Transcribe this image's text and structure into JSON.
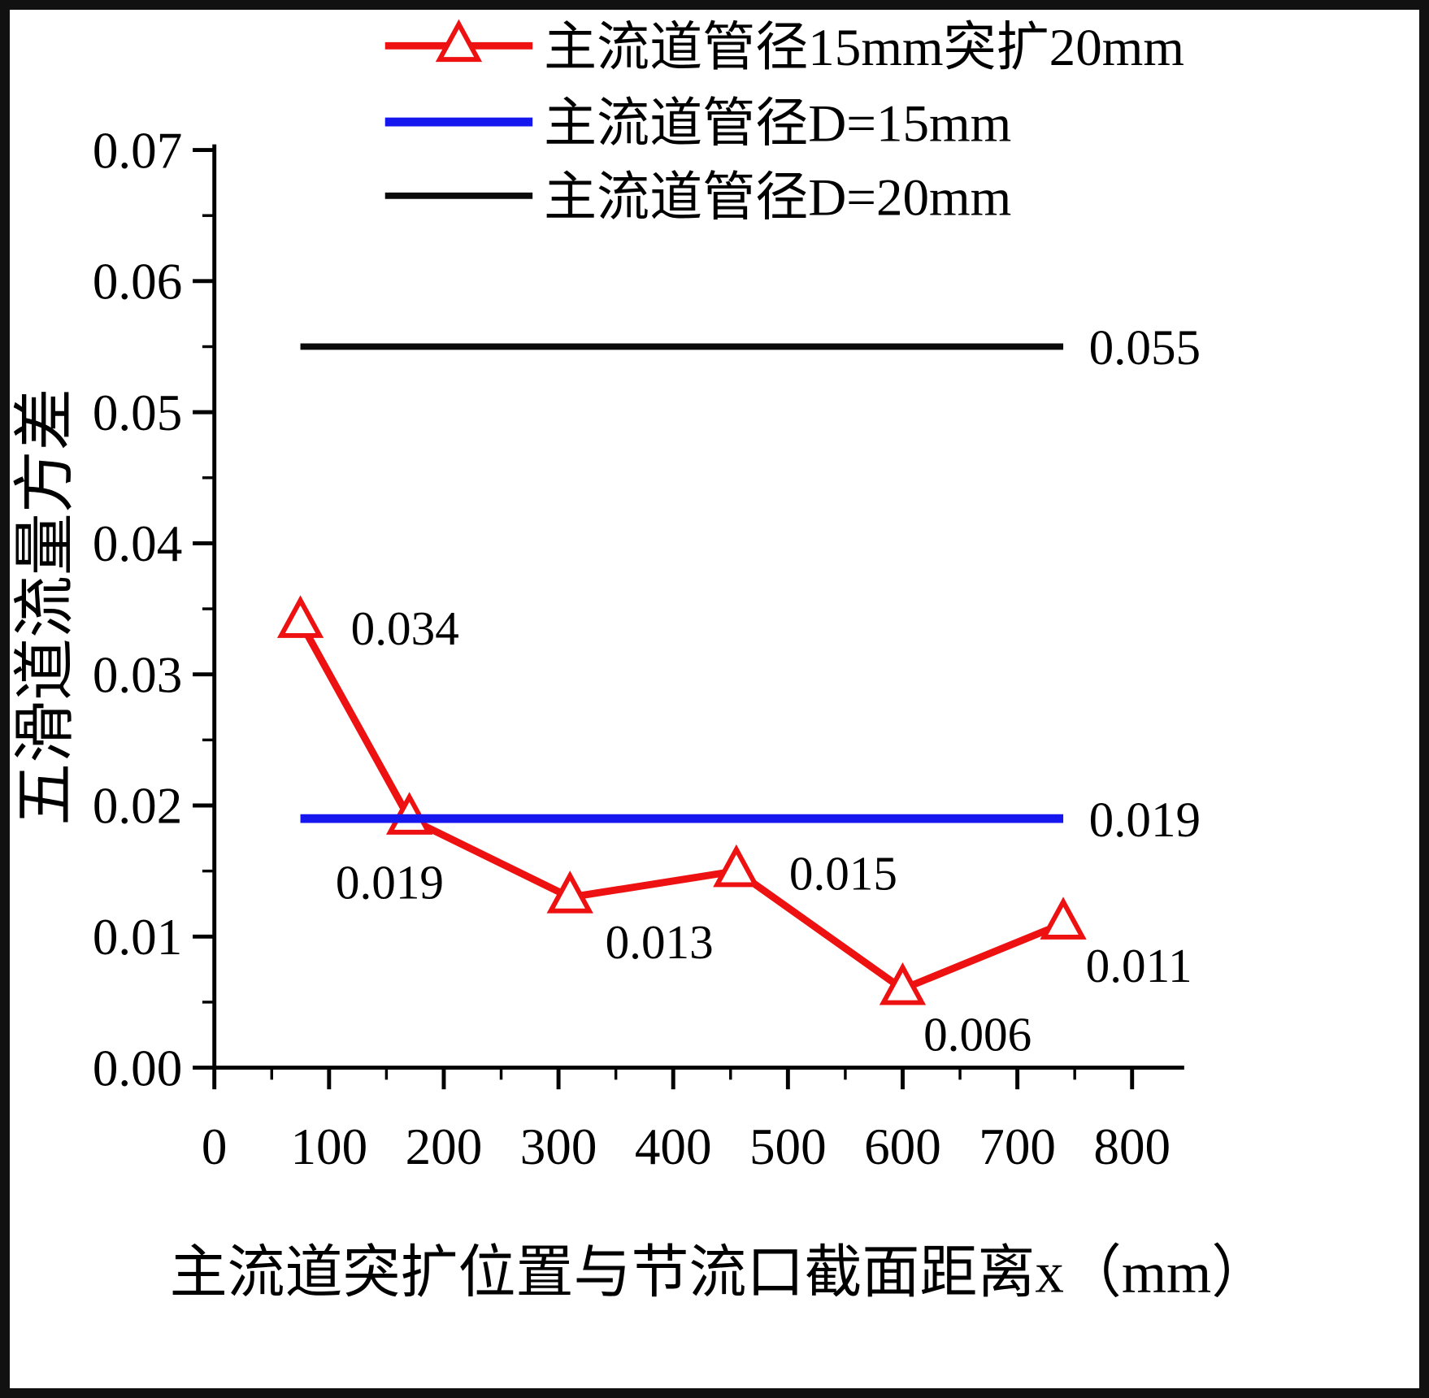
{
  "chart_data": {
    "type": "line",
    "title": "",
    "xlabel": "主流道突扩位置与节流口截面距离x（mm）",
    "ylabel": "五滑道流量方差",
    "xlim": [
      0,
      800
    ],
    "ylim": [
      0,
      0.07
    ],
    "x_ticks": [
      "0",
      "100",
      "200",
      "300",
      "400",
      "500",
      "600",
      "700",
      "800"
    ],
    "y_ticks": [
      "0.00",
      "0.01",
      "0.02",
      "0.03",
      "0.04",
      "0.05",
      "0.06",
      "0.07"
    ],
    "grid": false,
    "legend_position": "top",
    "series": [
      {
        "name": "主流道管径15mm突扩20mm",
        "color": "#ee1111",
        "marker": "triangle-open",
        "x": [
          75,
          170,
          310,
          455,
          600,
          740
        ],
        "y": [
          0.034,
          0.019,
          0.013,
          0.015,
          0.006,
          0.011
        ],
        "point_labels": [
          "0.034",
          "0.019",
          "0.013",
          "0.015",
          "0.006",
          "0.011"
        ]
      },
      {
        "name": "主流道管径D=15mm",
        "color": "#1616ee",
        "marker": "none",
        "x": [
          75,
          740
        ],
        "y": [
          0.019,
          0.019
        ],
        "end_label": "0.019"
      },
      {
        "name": "主流道管径D=20mm",
        "color": "#0a0a0a",
        "marker": "none",
        "x": [
          75,
          740
        ],
        "y": [
          0.055,
          0.055
        ],
        "end_label": "0.055"
      }
    ]
  }
}
